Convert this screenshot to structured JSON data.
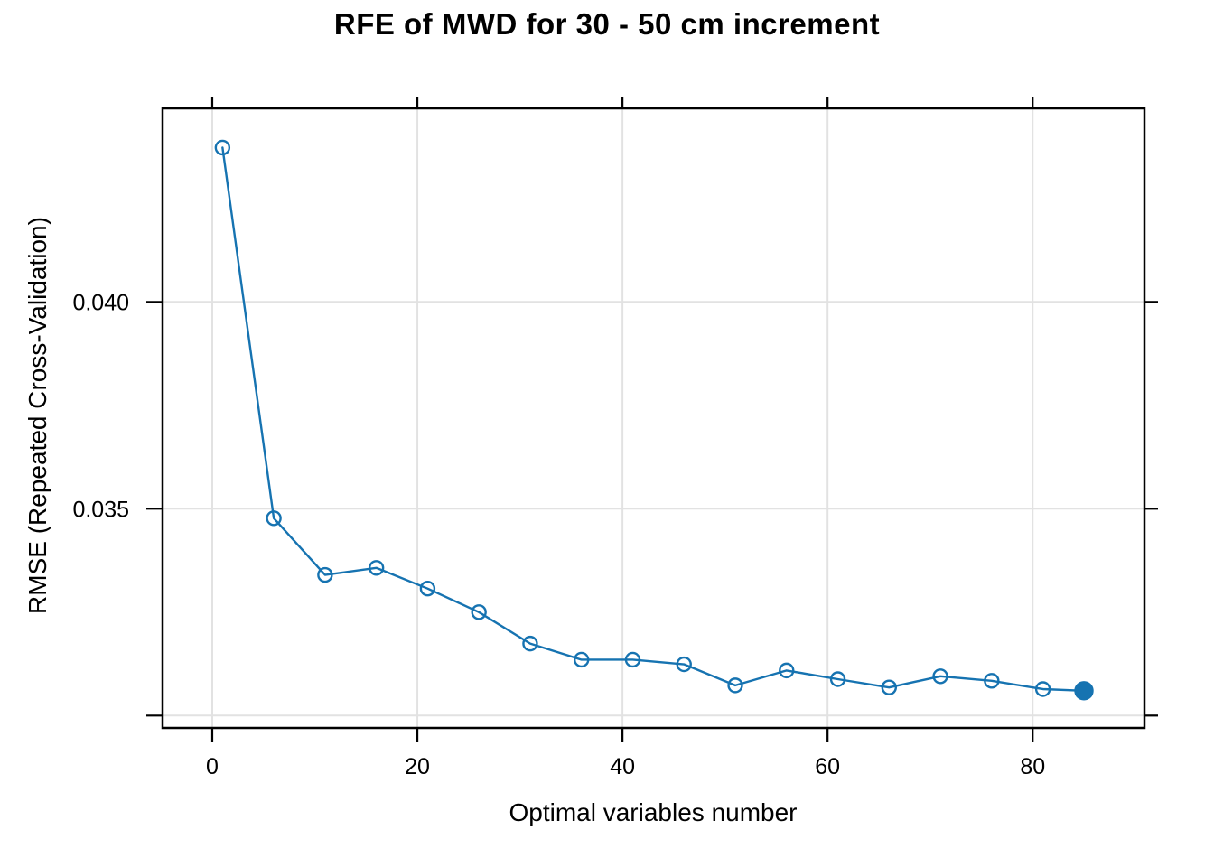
{
  "chart_data": {
    "type": "line",
    "title": "RFE of MWD for 30 - 50 cm increment",
    "xlabel": "Optimal variables number",
    "ylabel": "RMSE (Repeated Cross-Validation)",
    "series": [
      {
        "name": "RMSE",
        "x": [
          1,
          6,
          11,
          16,
          21,
          26,
          31,
          36,
          41,
          46,
          51,
          56,
          61,
          66,
          71,
          76,
          81,
          85
        ],
        "y": [
          0.04373,
          0.03477,
          0.0334,
          0.03357,
          0.03307,
          0.0325,
          0.03174,
          0.03135,
          0.03135,
          0.03124,
          0.03073,
          0.03109,
          0.03088,
          0.03068,
          0.03095,
          0.03084,
          0.03064,
          0.0306
        ]
      }
    ],
    "filled_last_point": true,
    "filled_point_x": 85,
    "marker": "open-circle",
    "grid": true,
    "legend": "none",
    "xlim": [
      -4.844,
      90.9
    ],
    "ylim": [
      0.029701,
      0.044679
    ],
    "xticks": {
      "values": [
        0,
        20,
        40,
        60,
        80
      ],
      "labels": [
        "0",
        "20",
        "40",
        "60",
        "80"
      ]
    },
    "yticks": {
      "values": [
        0.03,
        0.035,
        0.04
      ],
      "labels": [
        "",
        "0.035",
        "0.040"
      ]
    },
    "colors": {
      "line": "#1673B1",
      "grid": "#E2E2E2",
      "axis": "#000000",
      "text": "#000000",
      "background": "#FFFFFF"
    }
  }
}
